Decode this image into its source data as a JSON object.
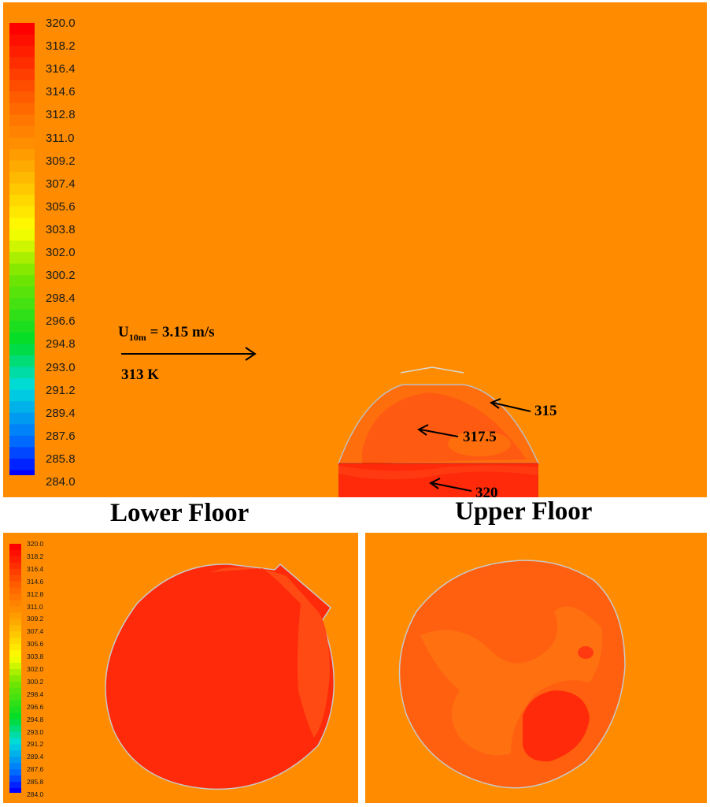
{
  "legend": {
    "ticks": [
      "320.0",
      "318.2",
      "316.4",
      "314.6",
      "312.8",
      "311.0",
      "309.2",
      "307.4",
      "305.6",
      "303.8",
      "302.0",
      "300.2",
      "298.4",
      "296.6",
      "294.8",
      "293.0",
      "291.2",
      "289.4",
      "287.6",
      "285.8",
      "284.0"
    ],
    "min": 284.0,
    "max": 320.0
  },
  "colors": {
    "ambient": "#FF8C00",
    "hot": "#FF2A0A",
    "warm": "#FF5A12",
    "mid": "#FF6E0C"
  },
  "annotations": {
    "wind_prefix": "U",
    "wind_subscript": "10m",
    "wind_value": " = 3.15 m/s",
    "inlet_temp": "313 K",
    "label_315": "315",
    "label_317": "317.5",
    "label_320": "320"
  },
  "titles": {
    "lower": "Lower Floor",
    "upper": "Upper Floor"
  }
}
